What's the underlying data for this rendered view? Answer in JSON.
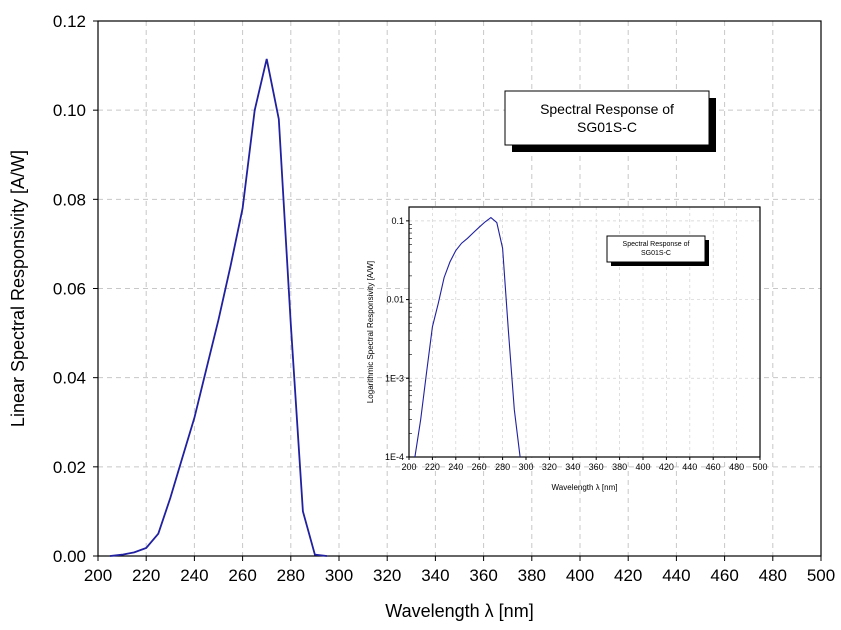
{
  "chart_data": [
    {
      "type": "line",
      "title": "",
      "annotation_box": [
        "Spectral Response of",
        "SG01S-C"
      ],
      "xlabel": "Wavelength λ [nm]",
      "ylabel": "Linear Spectral Responsivity [A/W]",
      "xlim": [
        200,
        500
      ],
      "ylim": [
        0,
        0.12
      ],
      "xticks": [
        200,
        220,
        240,
        260,
        280,
        300,
        320,
        340,
        360,
        380,
        400,
        420,
        440,
        460,
        480,
        500
      ],
      "yticks": [
        0.0,
        0.02,
        0.04,
        0.06,
        0.08,
        0.1,
        0.12
      ],
      "ytick_labels": [
        "0.00",
        "0.02",
        "0.04",
        "0.06",
        "0.08",
        "0.10",
        "0.12"
      ],
      "grid": true,
      "series": [
        {
          "color": "#2020a0",
          "x": [
            205,
            210,
            215,
            220,
            225,
            230,
            235,
            240,
            245,
            250,
            255,
            260,
            265,
            270,
            275,
            280,
            285,
            290,
            295
          ],
          "y": [
            0.0,
            0.0003,
            0.0008,
            0.0018,
            0.005,
            0.013,
            0.022,
            0.031,
            0.042,
            0.053,
            0.065,
            0.078,
            0.1,
            0.1115,
            0.098,
            0.052,
            0.01,
            0.0003,
            0.0
          ]
        }
      ]
    },
    {
      "type": "line",
      "title": "",
      "annotation_box": [
        "Spectral Response of",
        "SG01S-C"
      ],
      "xlabel": "Wavelength λ [nm]",
      "ylabel": "Logarithmic Spectral Responsivity [A/W]",
      "xlim": [
        200,
        500
      ],
      "ylim": [
        0.0001,
        0.15
      ],
      "yscale": "log",
      "xticks": [
        200,
        220,
        240,
        260,
        280,
        300,
        320,
        340,
        360,
        380,
        400,
        420,
        440,
        460,
        480,
        500
      ],
      "yticks": [
        0.0001,
        0.001,
        0.01,
        0.1
      ],
      "ytick_labels": [
        "1E-4",
        "1E-3",
        "0.01",
        "0.1"
      ],
      "grid": true,
      "series": [
        {
          "color": "#2020a0",
          "x": [
            205,
            210,
            215,
            220,
            225,
            230,
            235,
            240,
            245,
            250,
            255,
            260,
            265,
            270,
            275,
            280,
            285,
            290,
            295
          ],
          "y": [
            0.0001,
            0.0003,
            0.0012,
            0.0045,
            0.009,
            0.019,
            0.03,
            0.042,
            0.052,
            0.06,
            0.071,
            0.083,
            0.097,
            0.11,
            0.095,
            0.045,
            0.004,
            0.0004,
            0.0001
          ]
        }
      ]
    }
  ]
}
